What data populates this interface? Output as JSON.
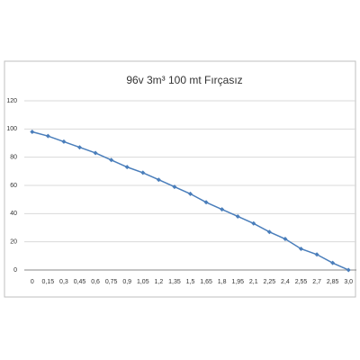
{
  "chart_data": {
    "type": "line",
    "title": "96v 3m³ 100 mt Fırçasız",
    "categories": [
      "0",
      "0,15",
      "0,3",
      "0,45",
      "0,6",
      "0,75",
      "0,9",
      "1,05",
      "1,2",
      "1,35",
      "1,5",
      "1,65",
      "1,8",
      "1,95",
      "2,1",
      "2,25",
      "2,4",
      "2,55",
      "2,7",
      "2,85",
      "3,0"
    ],
    "values": [
      98,
      95,
      91,
      87,
      83,
      78,
      73,
      69,
      64,
      59,
      54,
      48,
      43,
      38,
      33,
      27,
      22,
      15,
      11,
      5,
      0
    ],
    "color": "#4a7ebb",
    "ylim": [
      0,
      120
    ],
    "yticks": [
      0,
      20,
      40,
      60,
      80,
      100,
      120
    ],
    "grid": true
  }
}
